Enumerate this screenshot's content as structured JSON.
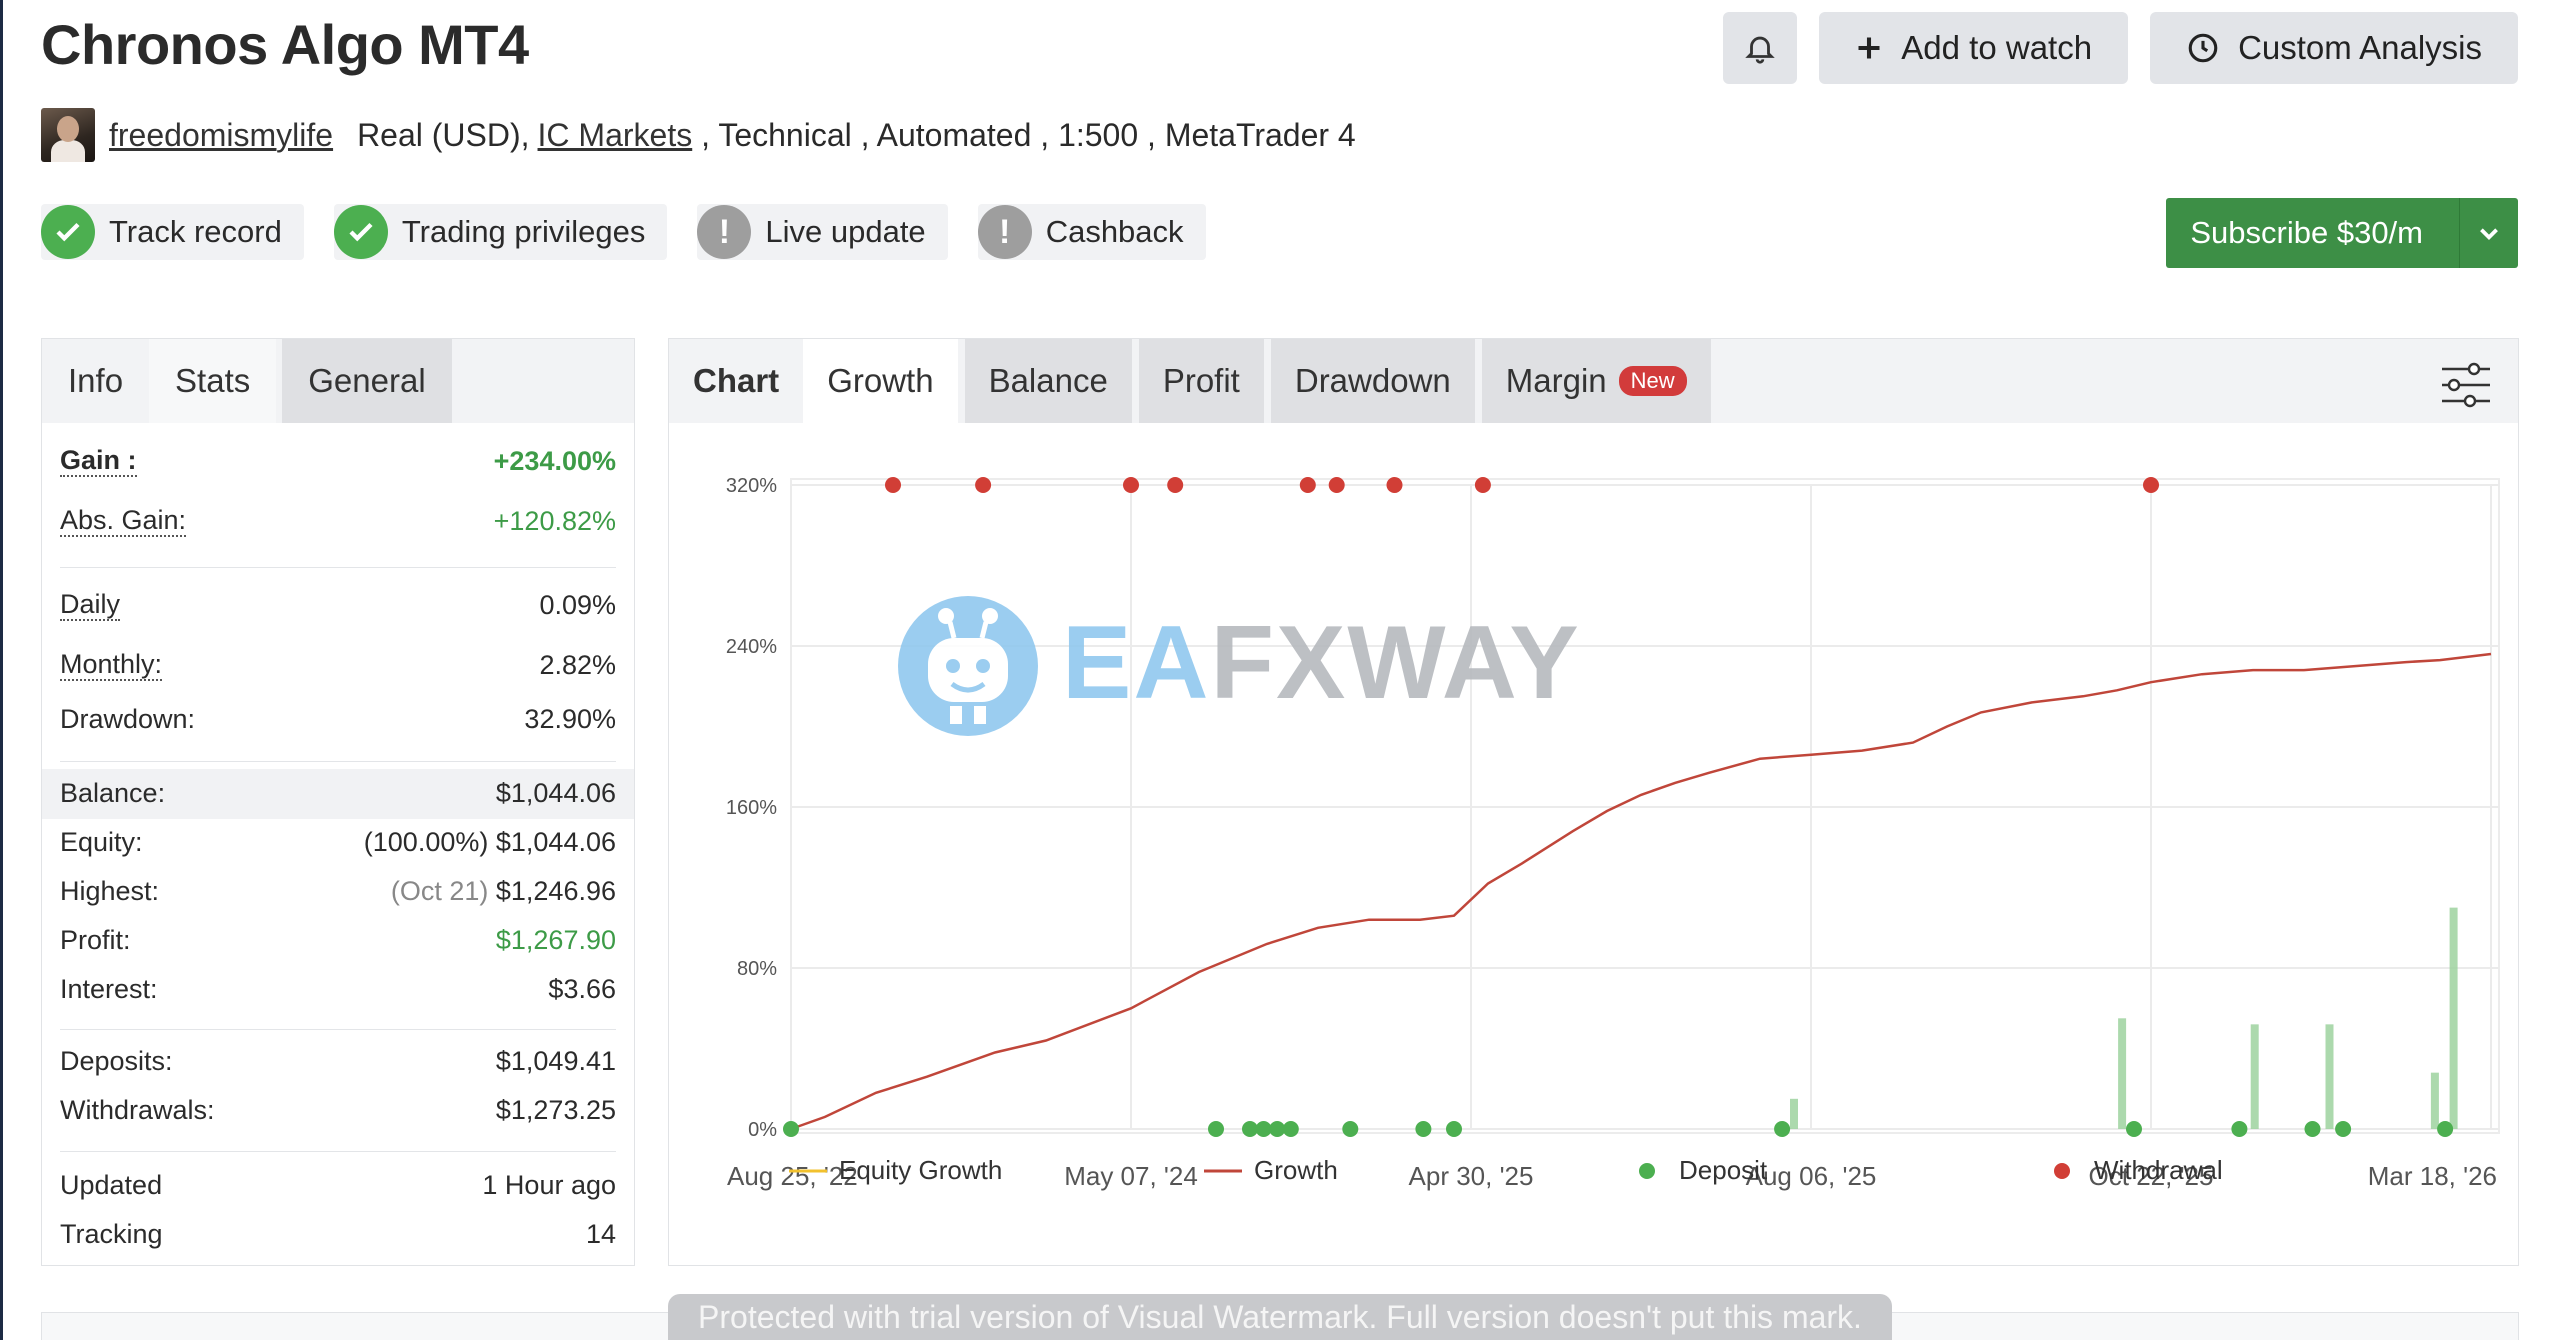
{
  "header": {
    "title": "Chronos Algo MT4",
    "add_watch": "Add to watch",
    "custom_analysis": "Custom Analysis"
  },
  "owner": {
    "username": "freedomismylife",
    "account_type": "Real (USD),",
    "broker": "IC Markets",
    "details": " , Technical , Automated , 1:500 , MetaTrader 4"
  },
  "badges": [
    {
      "label": "Track record",
      "status": "ok"
    },
    {
      "label": "Trading privileges",
      "status": "ok"
    },
    {
      "label": "Live update",
      "status": "warn"
    },
    {
      "label": "Cashback",
      "status": "warn"
    }
  ],
  "subscribe_label": "Subscribe $30/m",
  "left_tabs": [
    "Info",
    "Stats",
    "General"
  ],
  "stats": {
    "gain_label": "Gain :",
    "gain": "+234.00%",
    "abs_gain_label": "Abs. Gain:",
    "abs_gain": "+120.82%",
    "daily_label": "Daily",
    "daily": "0.09%",
    "monthly_label": "Monthly:",
    "monthly": "2.82%",
    "drawdown_label": "Drawdown:",
    "drawdown": "32.90%",
    "balance_label": "Balance:",
    "balance": "$1,044.06",
    "equity_label": "Equity:",
    "equity_pct": "(100.00%)",
    "equity": "$1,044.06",
    "highest_label": "Highest:",
    "highest_date": "(Oct 21)",
    "highest": "$1,246.96",
    "profit_label": "Profit:",
    "profit": "$1,267.90",
    "interest_label": "Interest:",
    "interest": "$3.66",
    "deposits_label": "Deposits:",
    "deposits": "$1,049.41",
    "withdrawals_label": "Withdrawals:",
    "withdrawals": "$1,273.25",
    "updated_label": "Updated",
    "updated": "1 Hour ago",
    "tracking_label": "Tracking",
    "tracking": "14"
  },
  "chart_tabs": {
    "chart": "Chart",
    "growth": "Growth",
    "balance": "Balance",
    "profit": "Profit",
    "drawdown": "Drawdown",
    "margin": "Margin",
    "new": "New"
  },
  "chart_data": {
    "type": "line",
    "y_ticks": [
      "0%",
      "80%",
      "160%",
      "240%",
      "320%"
    ],
    "x_ticks": [
      "Aug 25, '22",
      "May 07, '24",
      "Apr 30, '25",
      "Aug 06, '25",
      "Oct 22, '25",
      "Mar 18, '26"
    ],
    "ylim": [
      0,
      320
    ],
    "grid": true,
    "legend_position": "bottom",
    "legend": [
      "Equity Growth",
      "Growth",
      "Deposit",
      "Withdrawal"
    ],
    "colors": {
      "growth": "#c0463a",
      "equity": "#f2c12e",
      "deposit": "#4caf50",
      "withdrawal": "#d13e36",
      "bars": "#9ed29f"
    },
    "growth_series": [
      [
        0,
        0
      ],
      [
        0.02,
        6
      ],
      [
        0.05,
        18
      ],
      [
        0.08,
        26
      ],
      [
        0.1,
        32
      ],
      [
        0.12,
        38
      ],
      [
        0.15,
        44
      ],
      [
        0.2,
        60
      ],
      [
        0.24,
        78
      ],
      [
        0.28,
        92
      ],
      [
        0.31,
        100
      ],
      [
        0.34,
        104
      ],
      [
        0.37,
        104
      ],
      [
        0.39,
        106
      ],
      [
        0.41,
        122
      ],
      [
        0.43,
        132
      ],
      [
        0.46,
        148
      ],
      [
        0.48,
        158
      ],
      [
        0.5,
        166
      ],
      [
        0.52,
        172
      ],
      [
        0.54,
        177
      ],
      [
        0.57,
        184
      ],
      [
        0.6,
        186
      ],
      [
        0.63,
        188
      ],
      [
        0.66,
        192
      ],
      [
        0.68,
        200
      ],
      [
        0.7,
        207
      ],
      [
        0.73,
        212
      ],
      [
        0.76,
        215
      ],
      [
        0.78,
        218
      ],
      [
        0.8,
        222
      ],
      [
        0.83,
        226
      ],
      [
        0.86,
        228
      ],
      [
        0.89,
        228
      ],
      [
        0.92,
        230
      ],
      [
        0.95,
        232
      ],
      [
        0.97,
        233
      ],
      [
        1.0,
        236
      ]
    ],
    "withdrawals_x": [
      0.06,
      0.113,
      0.2,
      0.226,
      0.304,
      0.321,
      0.355,
      0.407,
      0.8
    ],
    "deposits_x": [
      0.0,
      0.25,
      0.27,
      0.278,
      0.286,
      0.294,
      0.329,
      0.372,
      0.39,
      0.583,
      0.79,
      0.852,
      0.895,
      0.913,
      0.973
    ],
    "bars": [
      [
        0.59,
        15
      ],
      [
        0.783,
        55
      ],
      [
        0.861,
        52
      ],
      [
        0.905,
        52
      ],
      [
        0.967,
        28
      ],
      [
        0.978,
        110
      ]
    ]
  },
  "trial_notice": "Protected with trial version of Visual Watermark. Full version doesn't put this mark."
}
